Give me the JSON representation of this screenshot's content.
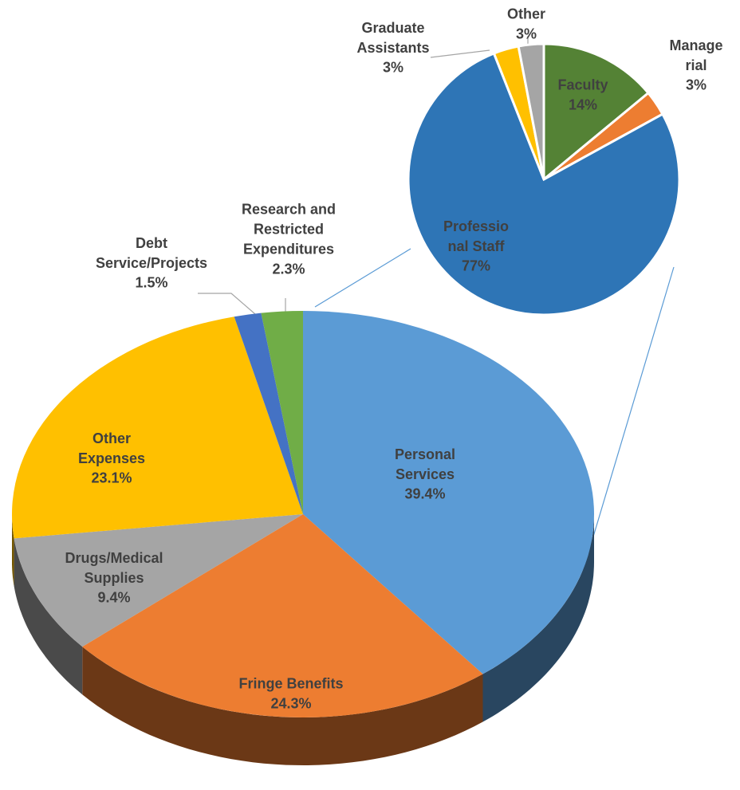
{
  "chart_data": [
    {
      "type": "pie",
      "categories": [
        "Personal Services",
        "Fringe Benefits",
        "Drugs/Medical Supplies",
        "Other Expenses",
        "Debt Service/Projects",
        "Research and Restricted Expenditures"
      ],
      "values": [
        39.4,
        24.3,
        9.4,
        23.1,
        1.5,
        2.3
      ],
      "value_labels": [
        "39.4%",
        "24.3%",
        "9.4%",
        "23.1%",
        "1.5%",
        "2.3%"
      ],
      "colors": [
        "#5b9bd5",
        "#ed7d31",
        "#a5a5a5",
        "#ffc000",
        "#4472c4",
        "#70ad47"
      ]
    },
    {
      "type": "pie",
      "categories": [
        "Faculty",
        "Managerial",
        "Professional Staff",
        "Graduate Assistants",
        "Other"
      ],
      "values": [
        14,
        3,
        77,
        3,
        3
      ],
      "value_labels": [
        "14%",
        "3%",
        "77%",
        "3%",
        "3%"
      ],
      "colors": [
        "#548235",
        "#ed7d31",
        "#2e75b6",
        "#ffc000",
        "#a5a5a5"
      ]
    }
  ]
}
